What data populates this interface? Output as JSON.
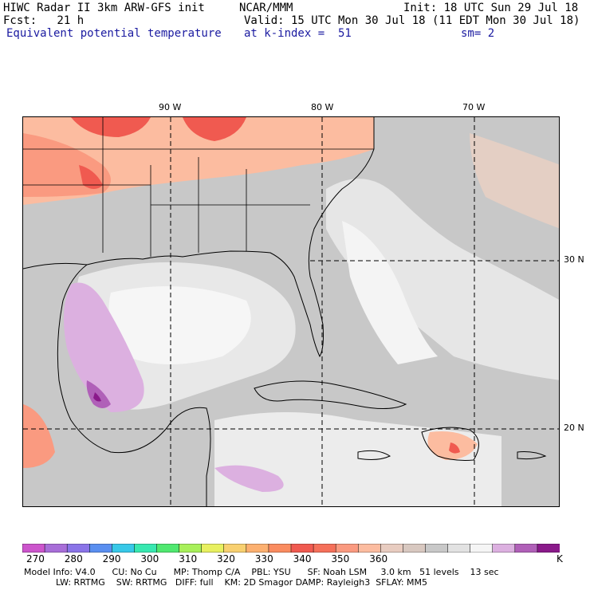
{
  "header": {
    "model": "HIWC Radar II 3km ARW-GFS init",
    "org": "NCAR/MMM",
    "init": "Init: 18 UTC Sun 29 Jul 18",
    "fcst": "Fcst:   21 h",
    "valid": "Valid: 15 UTC Mon 30 Jul 18 (11 EDT Mon 30 Jul 18)",
    "field": "Equivalent potential temperature",
    "level": "at k-index =  51",
    "smooth": "sm= 2"
  },
  "map": {
    "lon_labels": [
      "90 W",
      "80 W",
      "70 W"
    ],
    "lat_labels": [
      "30 N",
      "20 N"
    ]
  },
  "colorbar": {
    "labels": [
      "270",
      "280",
      "290",
      "300",
      "310",
      "320",
      "330",
      "340",
      "350",
      "360"
    ],
    "unit": "K",
    "colors": [
      "#cc55cc",
      "#a86ed8",
      "#8a74e8",
      "#5a8ff0",
      "#38c8e8",
      "#38e8b0",
      "#50e870",
      "#a8f05a",
      "#e8f060",
      "#f8d070",
      "#fcb070",
      "#fa8c60",
      "#f05a50",
      "#f5705a",
      "#fa9a80",
      "#fcbca0",
      "#e8ccc0",
      "#d8c8c0",
      "#c8c8c8",
      "#e2e2e2",
      "#f5f5f5",
      "#dcb0e0",
      "#b060b8",
      "#8a1a8a"
    ]
  },
  "footer": {
    "line1": "Model Info: V4.0      CU: No Cu      MP: Thomp C/A    PBL: YSU      SF: Noah LSM     3.0 km   51 levels    13 sec",
    "line2": "LW: RRTMG    SW: RRTMG   DIFF: full    KM: 2D Smagor DAMP: Rayleigh3  SFLAY: MM5"
  }
}
